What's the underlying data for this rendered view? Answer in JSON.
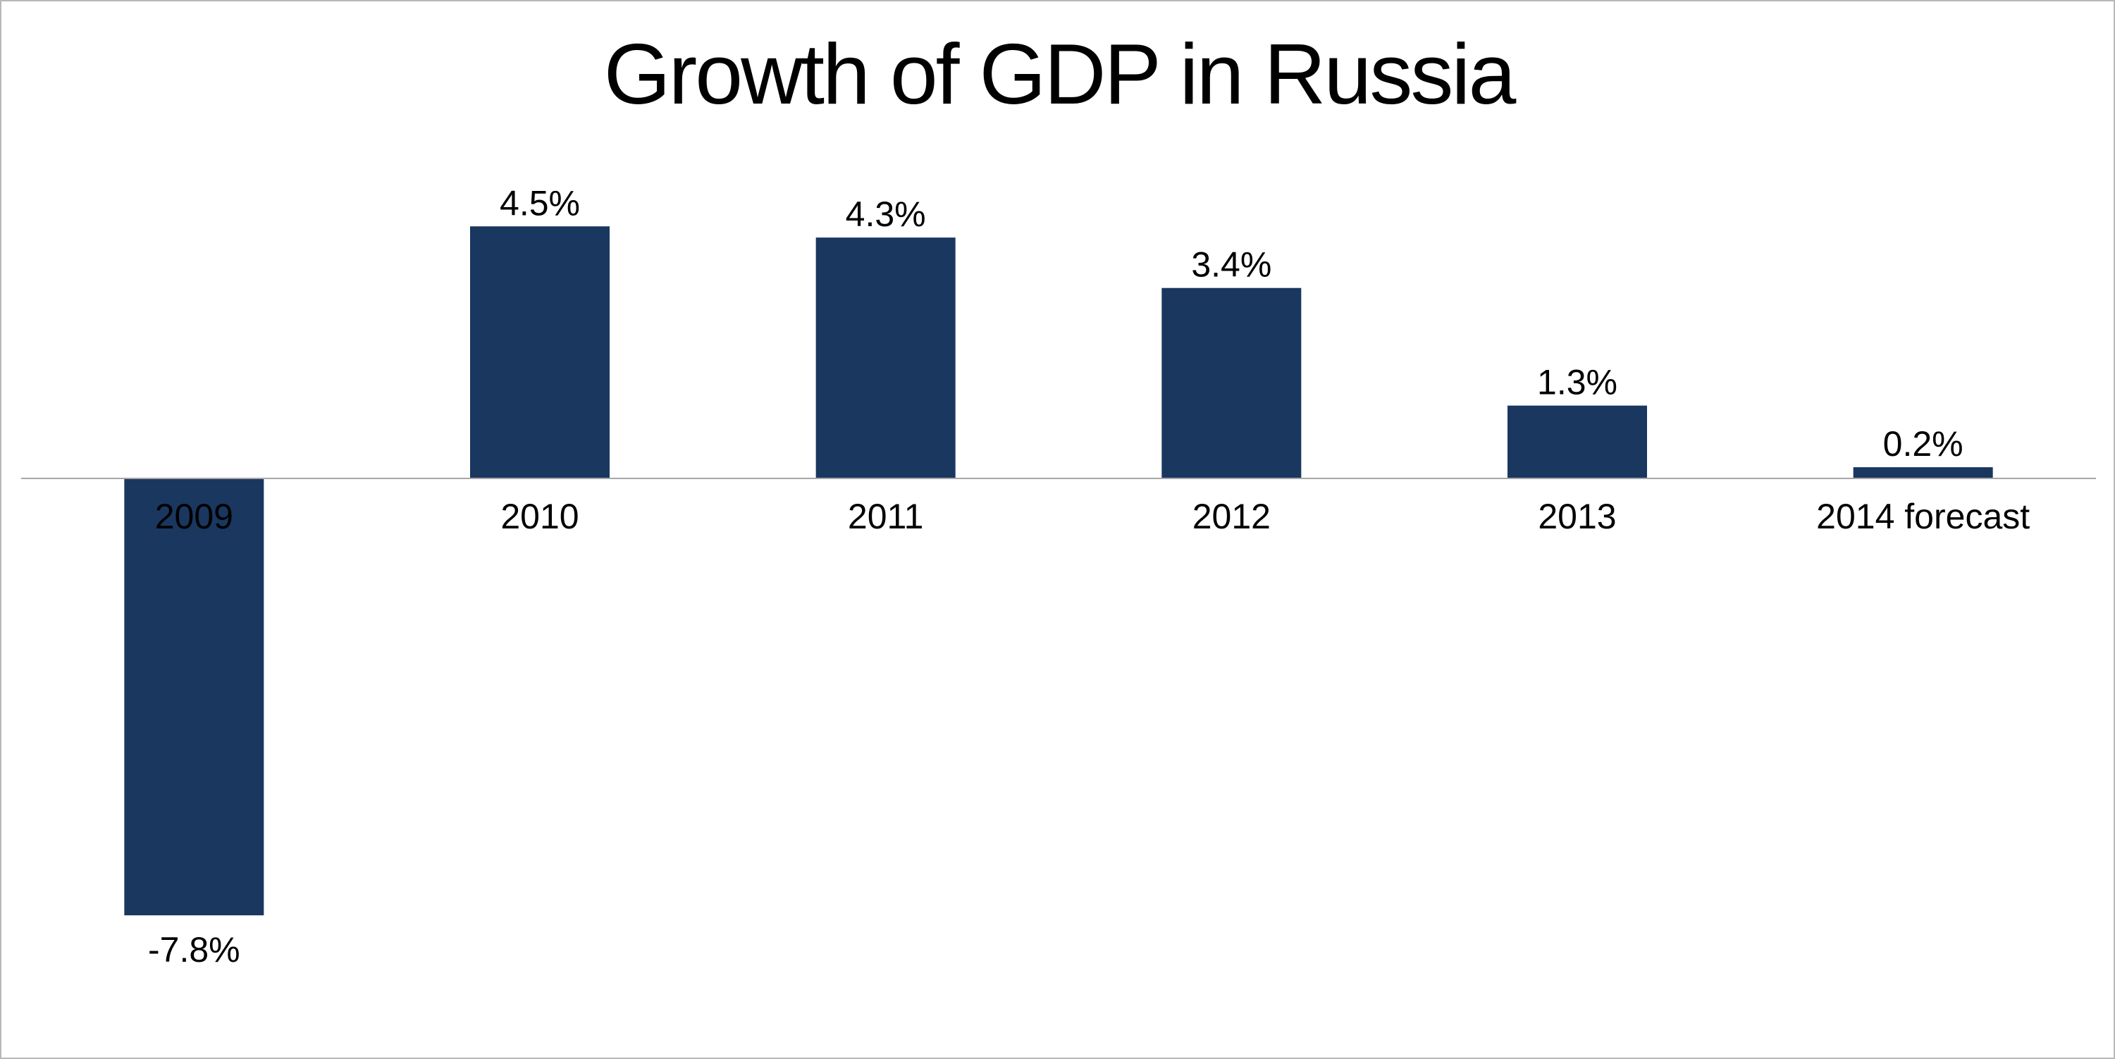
{
  "colors": {
    "bar": "#1a3760",
    "axis": "#a6a6a6",
    "background": "#ffffff",
    "text": "#000000"
  },
  "chart_data": {
    "type": "bar",
    "title": "Growth of GDP in Russia",
    "xlabel": "",
    "ylabel": "",
    "categories": [
      "2009",
      "2010",
      "2011",
      "2012",
      "2013",
      "2014 forecast"
    ],
    "values": [
      -7.8,
      4.5,
      4.3,
      3.4,
      1.3,
      0.2
    ],
    "value_labels": [
      "-7.8%",
      "4.5%",
      "4.3%",
      "3.4%",
      "1.3%",
      "0.2%"
    ],
    "unit": "%",
    "ylim": [
      -7.8,
      4.5
    ],
    "grid": false,
    "legend": "none",
    "axis_line": "zero baseline"
  }
}
